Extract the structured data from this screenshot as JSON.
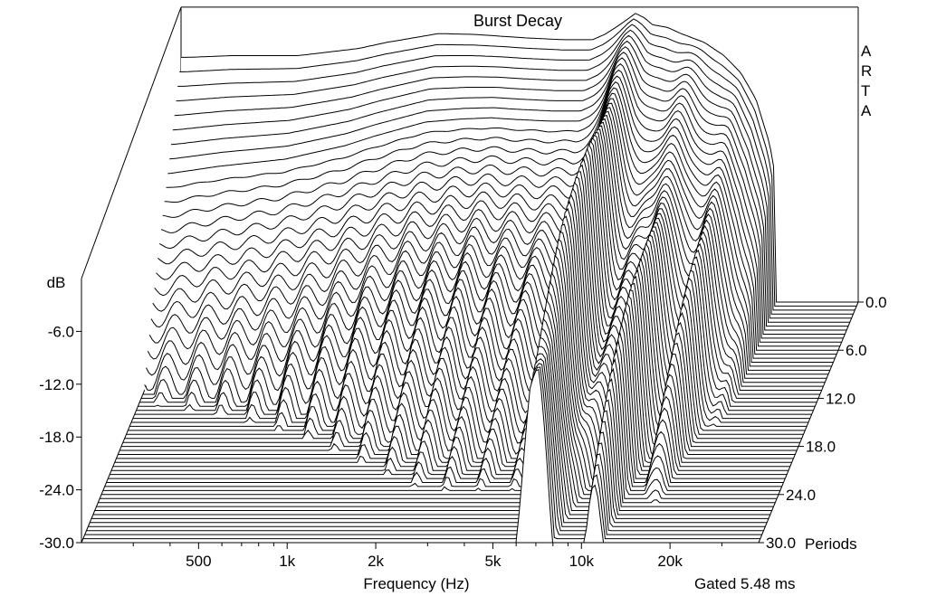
{
  "chart_data": {
    "type": "waterfall",
    "title": "Burst Decay",
    "watermark": "ARTA",
    "xlabel": "Frequency (Hz)",
    "ylabel": "dB",
    "zlabel": "Periods",
    "gating_note": "Gated 5.48 ms",
    "x_scale": "log",
    "x_range": [
      200,
      40000
    ],
    "y_range": [
      -30,
      0
    ],
    "z_range": [
      0,
      30
    ],
    "x_ticks": [
      {
        "value": 500,
        "label": "500"
      },
      {
        "value": 1000,
        "label": "1k"
      },
      {
        "value": 2000,
        "label": "2k"
      },
      {
        "value": 5000,
        "label": "5k"
      },
      {
        "value": 10000,
        "label": "10k"
      },
      {
        "value": 20000,
        "label": "20k"
      }
    ],
    "y_ticks": [
      {
        "value": -6,
        "label": "-6.0"
      },
      {
        "value": -12,
        "label": "-12.0"
      },
      {
        "value": -18,
        "label": "-18.0"
      },
      {
        "value": -24,
        "label": "-24.0"
      },
      {
        "value": -30,
        "label": "-30.0"
      }
    ],
    "z_ticks": [
      {
        "value": 0,
        "label": "0.0"
      },
      {
        "value": 6,
        "label": "6.0"
      },
      {
        "value": 12,
        "label": "12.0"
      },
      {
        "value": 18,
        "label": "18.0"
      },
      {
        "value": 24,
        "label": "24.0"
      },
      {
        "value": 30,
        "label": "30.0"
      }
    ],
    "slices": {
      "count": 61,
      "z_start": 0,
      "z_step": 0.5
    },
    "initial_response": {
      "frequency_hz": [
        210,
        300,
        500,
        800,
        1000,
        1500,
        2000,
        3000,
        4000,
        5000,
        5500,
        6000,
        6500,
        7000,
        7500,
        8000,
        9000,
        10000,
        12000,
        14000,
        16000,
        18000,
        20000,
        22000,
        24000
      ],
      "level_db": [
        -2.2,
        -2.0,
        -2.0,
        -1.2,
        -0.5,
        0.5,
        0.4,
        0.0,
        -0.2,
        -0.2,
        0.4,
        1.2,
        2.0,
        2.8,
        2.3,
        1.5,
        1.2,
        0.5,
        -0.5,
        -2.0,
        -4.0,
        -7.0,
        -12.0,
        -20.0,
        -30.0
      ]
    }
  }
}
